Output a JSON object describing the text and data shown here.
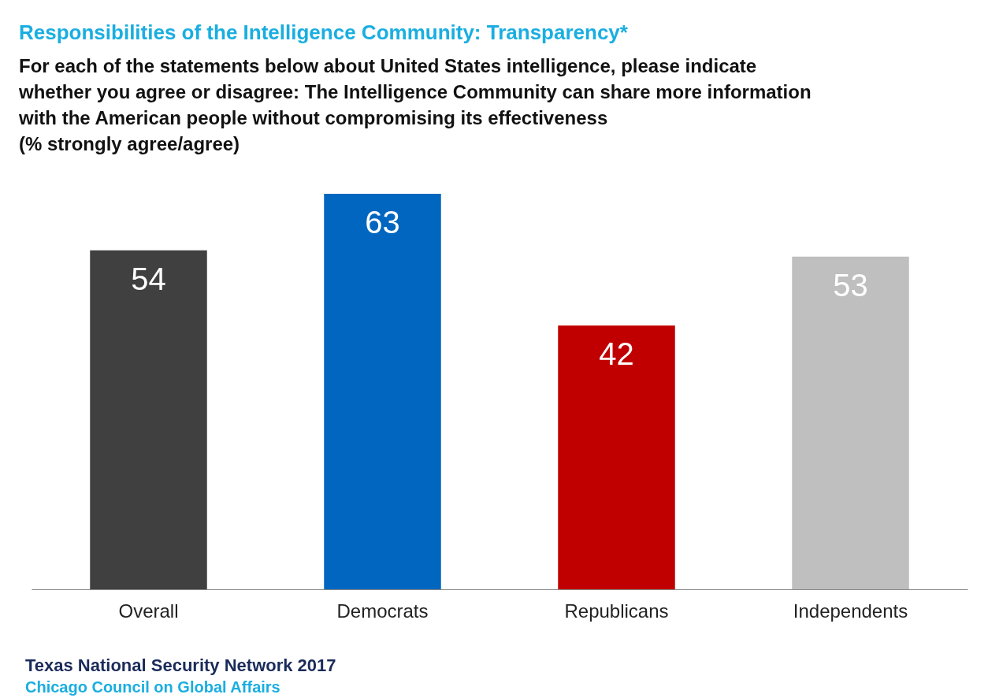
{
  "chart_data": {
    "type": "bar",
    "title": "Responsibilities of the Intelligence Community: Transparency*",
    "subtitle": "For each of the statements below about United States intelligence, please indicate whether you agree or disagree: The Intelligence Community can share more information with the American people without compromising its effectiveness",
    "ylabel": "(% strongly agree/agree)",
    "categories": [
      "Overall",
      "Democrats",
      "Republicans",
      "Independents"
    ],
    "values": [
      54,
      63,
      42,
      53
    ],
    "colors": [
      "#404040",
      "#0066bf",
      "#c00000",
      "#bfbfbf"
    ],
    "data_labels": true,
    "grid": false,
    "legend": false,
    "annotations": [
      "Texas National Security Network 2017",
      "Chicago Council on Global Affairs"
    ]
  }
}
